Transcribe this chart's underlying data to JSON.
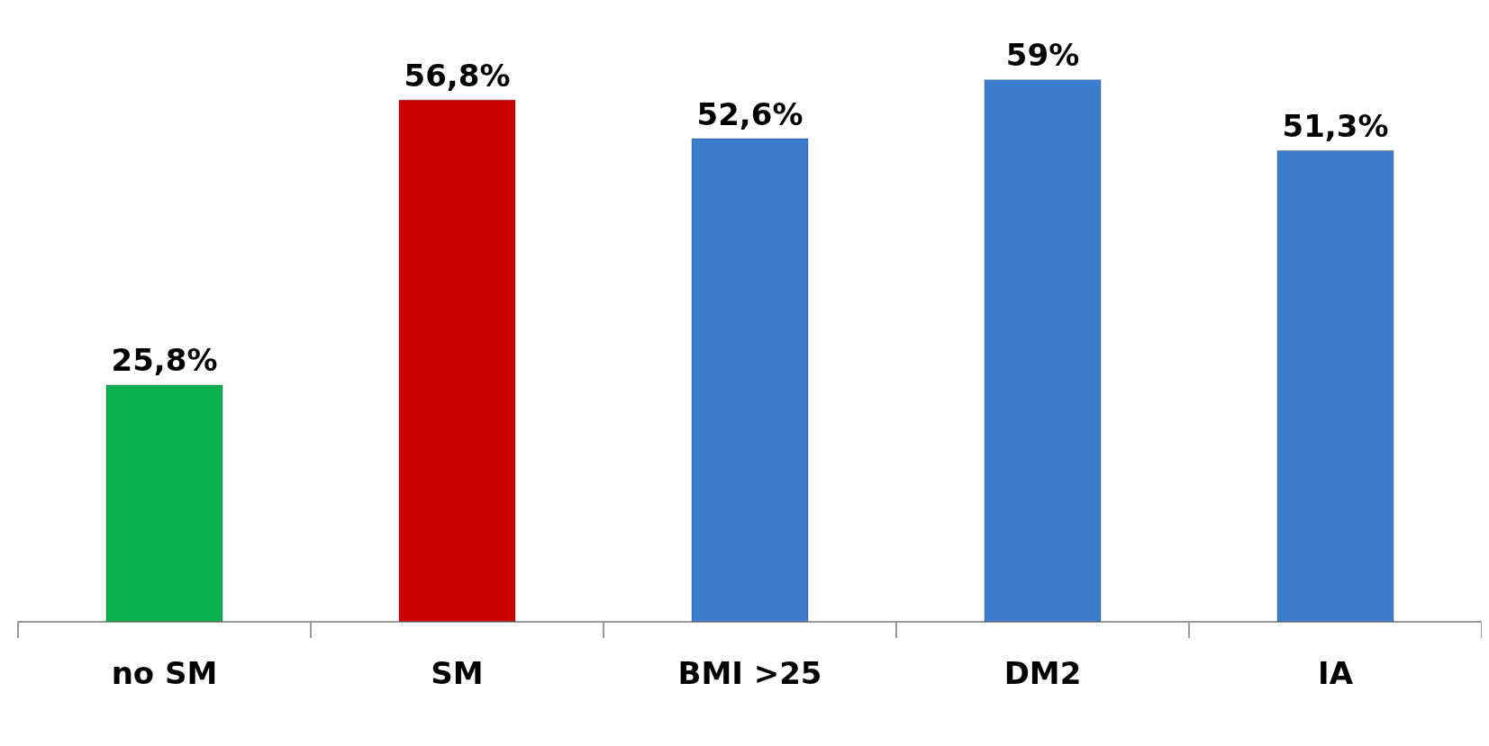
{
  "chart_data": {
    "type": "bar",
    "categories": [
      "no SM",
      "SM",
      "BMI >25",
      "DM2",
      "IA"
    ],
    "values": [
      25.8,
      56.8,
      52.6,
      59,
      51.3
    ],
    "colors": [
      "#0ab14f",
      "#cc0000",
      "#3d7dcf",
      "#3d7dcf",
      "#3d7dcf"
    ],
    "value_labels": [
      "25,8%",
      "56,8%",
      "52,6%",
      "59%",
      "51,3%"
    ]
  }
}
